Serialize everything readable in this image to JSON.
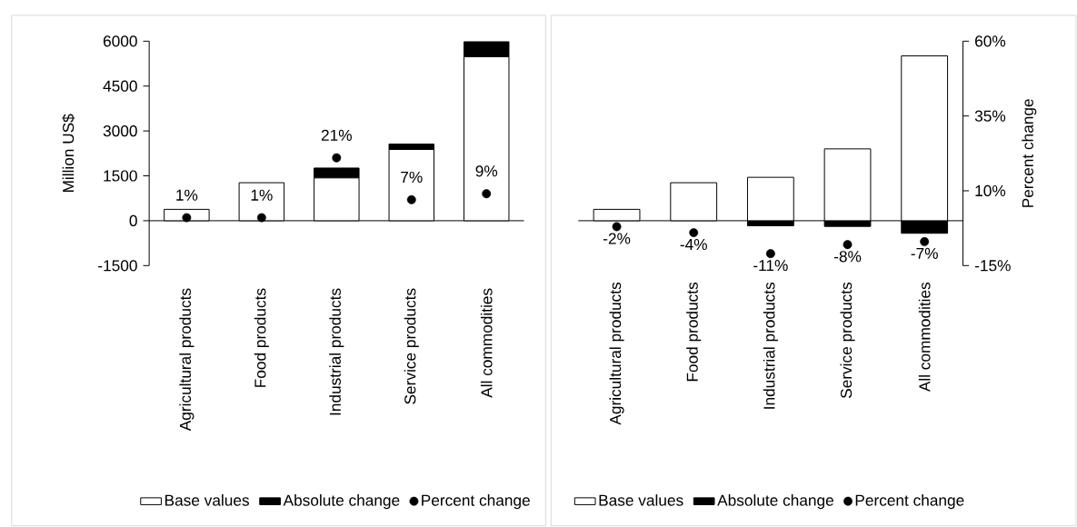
{
  "chart_data": [
    {
      "type": "bar",
      "stacked": true,
      "categories": [
        "Agricultural products",
        "Food products",
        "Industrial products",
        "Service products",
        "All commodities"
      ],
      "series": [
        {
          "name": "Base values",
          "color": "#ffffff",
          "values": [
            380,
            1270,
            1430,
            2380,
            5480
          ]
        },
        {
          "name": "Absolute change",
          "color": "#000000",
          "values": [
            null,
            null,
            330,
            180,
            500
          ]
        },
        {
          "name": "Percent change",
          "type": "scatter",
          "axis": "y2",
          "marker": "circle",
          "color": "#000000",
          "values": [
            1,
            1,
            21,
            7,
            9
          ],
          "value_labels": [
            "1%",
            "1%",
            "21%",
            "7%",
            "9%"
          ]
        }
      ],
      "ylabel": "Million US$",
      "ylim": [
        -1500,
        6000
      ],
      "yticks": [
        -1500,
        0,
        1500,
        3000,
        4500,
        6000
      ],
      "y2lim": [
        -15,
        60
      ],
      "legend": "bottom"
    },
    {
      "type": "bar",
      "stacked": true,
      "categories": [
        "Agricultural products",
        "Food products",
        "Industrial products",
        "Service products",
        "All commodities"
      ],
      "series": [
        {
          "name": "Base values",
          "color": "#ffffff",
          "values": [
            380,
            1270,
            1450,
            2400,
            5510
          ]
        },
        {
          "name": "Absolute change",
          "color": "#000000",
          "values": [
            null,
            null,
            -170,
            -190,
            -420
          ]
        },
        {
          "name": "Percent change",
          "type": "scatter",
          "axis": "y2",
          "marker": "circle",
          "color": "#000000",
          "values": [
            -2,
            -4,
            -11,
            -8,
            -7
          ],
          "value_labels": [
            "-2%",
            "-4%",
            "-11%",
            "-8%",
            "-7%"
          ]
        }
      ],
      "ylim": [
        -1500,
        6000
      ],
      "y2label": "Percent change",
      "y2lim": [
        -15,
        60
      ],
      "y2ticks": [
        {
          "value": -15,
          "label": "-15%"
        },
        {
          "value": 10,
          "label": "10%"
        },
        {
          "value": 35,
          "label": "35%"
        },
        {
          "value": 60,
          "label": "60%"
        }
      ],
      "legend": "bottom"
    }
  ]
}
